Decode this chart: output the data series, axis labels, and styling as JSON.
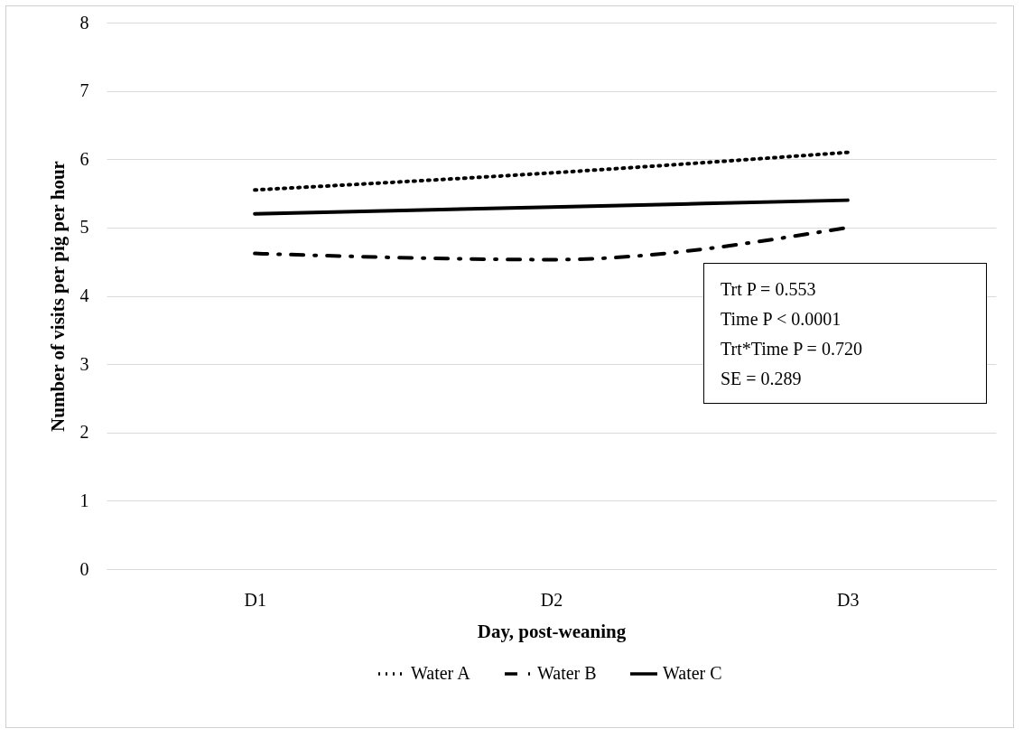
{
  "chart_data": {
    "type": "line",
    "xlabel": "Day, post-weaning",
    "ylabel": "Number of visits per pig per hour",
    "categories": [
      "D1",
      "D2",
      "D3"
    ],
    "series": [
      {
        "name": "Water A",
        "color": "#000000",
        "line_style": "dotted",
        "values": [
          5.55,
          5.8,
          6.1
        ]
      },
      {
        "name": "Water B",
        "color": "#000000",
        "line_style": "dashdot",
        "values": [
          4.62,
          4.53,
          5.0
        ]
      },
      {
        "name": "Water  C",
        "color": "#000000",
        "line_style": "solid",
        "values": [
          5.2,
          5.3,
          5.4
        ]
      }
    ],
    "ylim": [
      0,
      8
    ],
    "yticks": [
      0,
      1,
      2,
      3,
      4,
      5,
      6,
      7,
      8
    ],
    "grid": "y",
    "legend": "bottom",
    "marker": "none",
    "annotations": [
      "Trt P = 0.553",
      "Time P < 0.0001",
      "Trt*Time P = 0.720",
      "SE = 0.289"
    ]
  }
}
